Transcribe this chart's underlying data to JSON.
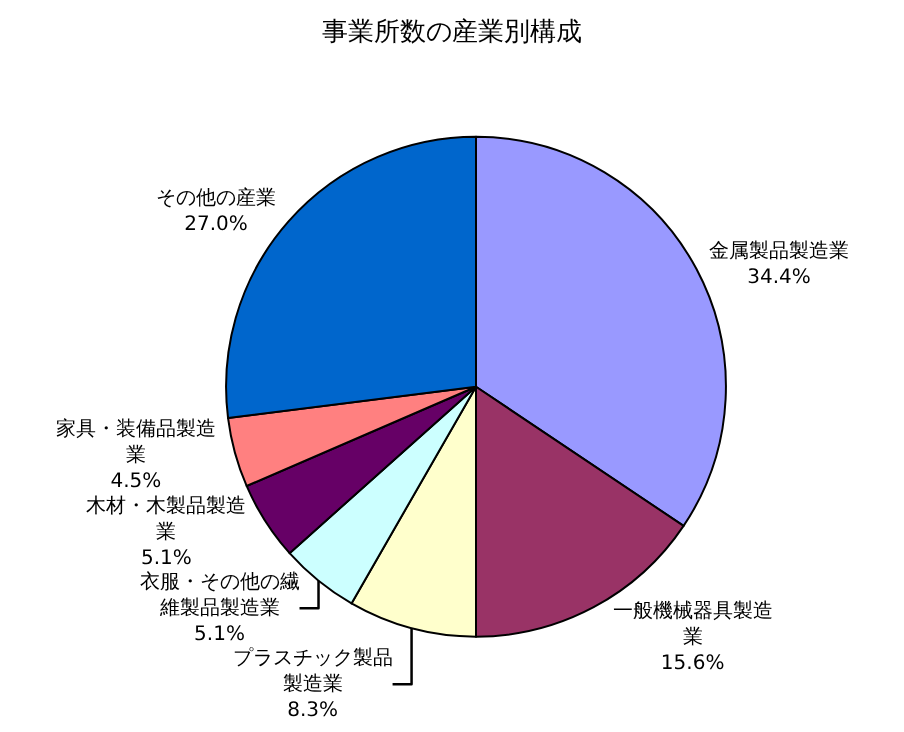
{
  "chart_data": {
    "type": "pie",
    "title": "事業所数の産業別構成",
    "categories": [
      "金属製品製造業",
      "一般機械器具製造業",
      "プラスチック製品製造業",
      "衣服・その他の繊維製品製造業",
      "木材・木製品製造業",
      "家具・装備品製造業",
      "その他の産業"
    ],
    "values": [
      34.4,
      15.6,
      8.3,
      5.1,
      5.1,
      4.5,
      27.0
    ],
    "value_labels": [
      "34.4%",
      "15.6%",
      "8.3%",
      "5.1%",
      "5.1%",
      "4.5%",
      "27.0%"
    ],
    "colors": [
      "#9999ff",
      "#993366",
      "#ffffcc",
      "#ccffff",
      "#660066",
      "#ff8080",
      "#0066cc"
    ]
  }
}
